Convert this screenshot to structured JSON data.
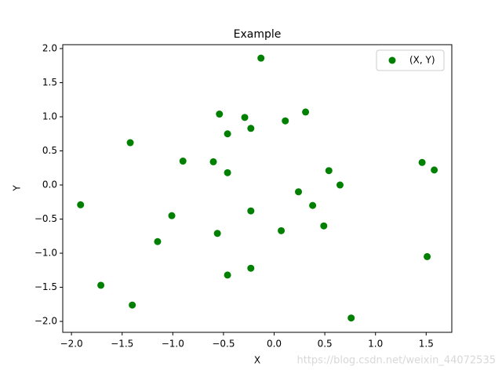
{
  "chart_data": {
    "type": "scatter",
    "title": "Example",
    "x_label": "X",
    "y_label": "Y",
    "series": [
      {
        "name": "(X, Y)",
        "color": "#008000",
        "x": [
          -1.91,
          -1.71,
          -1.42,
          -1.4,
          -1.15,
          -1.01,
          -0.9,
          -0.6,
          -0.56,
          -0.54,
          -0.46,
          -0.46,
          -0.46,
          -0.29,
          -0.23,
          -0.23,
          -0.23,
          -0.13,
          0.07,
          0.11,
          0.24,
          0.31,
          0.38,
          0.49,
          0.54,
          0.65,
          0.76,
          1.46,
          1.51,
          1.58
        ],
        "values": [
          -0.29,
          -1.47,
          0.62,
          -1.76,
          -0.83,
          -0.45,
          0.35,
          0.34,
          -0.71,
          1.04,
          0.75,
          0.18,
          -1.32,
          0.99,
          0.83,
          -0.38,
          -1.22,
          1.86,
          -0.67,
          0.94,
          -0.1,
          1.07,
          -0.3,
          -0.6,
          0.21,
          0.0,
          -1.95,
          0.33,
          -1.05,
          0.22
        ]
      }
    ],
    "xlim": [
      -2.086,
      1.753
    ],
    "ylim": [
      -2.16,
      2.057
    ],
    "xticks": [
      {
        "value": -2.0,
        "label": "−2.0"
      },
      {
        "value": -1.5,
        "label": "−1.5"
      },
      {
        "value": -1.0,
        "label": "−1.0"
      },
      {
        "value": -0.5,
        "label": "−0.5"
      },
      {
        "value": 0,
        "label": "0.0"
      },
      {
        "value": 0.5,
        "label": "0.5"
      },
      {
        "value": 1.0,
        "label": "1.0"
      },
      {
        "value": 1.5,
        "label": "1.5"
      }
    ],
    "yticks": [
      {
        "value": -2.0,
        "label": "−2.0"
      },
      {
        "value": -1.5,
        "label": "−1.5"
      },
      {
        "value": -1.0,
        "label": "−1.0"
      },
      {
        "value": -0.5,
        "label": "−0.5"
      },
      {
        "value": 0,
        "label": "0.0"
      },
      {
        "value": 0.5,
        "label": "0.5"
      },
      {
        "value": 1.0,
        "label": "1.0"
      },
      {
        "value": 1.5,
        "label": "1.5"
      },
      {
        "value": 2.0,
        "label": "2.0"
      }
    ],
    "grid": false,
    "legend": "upper right",
    "watermark": "https://blog.csdn.net/weixin_44072535"
  }
}
